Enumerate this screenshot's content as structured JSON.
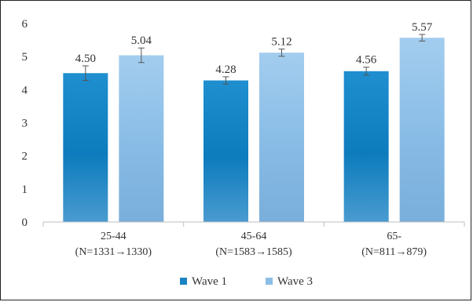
{
  "chart_data": {
    "type": "bar",
    "title": "",
    "xlabel": "",
    "ylabel": "",
    "ylim": [
      0,
      6
    ],
    "yticks": [
      0,
      1,
      2,
      3,
      4,
      5,
      6
    ],
    "grid": false,
    "legend_position": "bottom",
    "categories": [
      {
        "line1": "25-44",
        "line2": "(N=1331→1330)"
      },
      {
        "line1": "45-64",
        "line2": "(N=1583→1585)"
      },
      {
        "line1": "65-",
        "line2": "(N=811→879)"
      }
    ],
    "series": [
      {
        "name": "Wave 1",
        "color": "#1a84c2",
        "values": [
          4.5,
          4.28,
          4.56
        ],
        "labels": [
          "4.50",
          "4.28",
          "4.56"
        ],
        "error": [
          0.22,
          0.11,
          0.12
        ]
      },
      {
        "name": "Wave 3",
        "color": "#8cbde6",
        "values": [
          5.04,
          5.12,
          5.57
        ],
        "labels": [
          "5.04",
          "5.12",
          "5.57"
        ],
        "error": [
          0.22,
          0.11,
          0.1
        ]
      }
    ]
  }
}
